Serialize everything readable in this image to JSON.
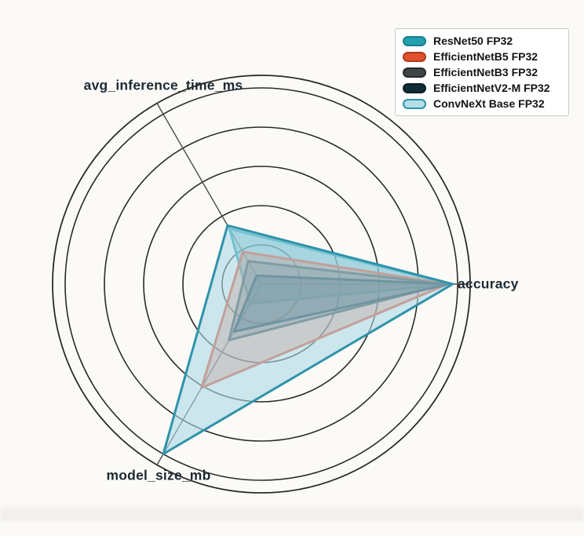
{
  "chart_data": {
    "type": "radar",
    "title": "",
    "grid": {
      "ring_levels": [
        0.2,
        0.4,
        0.6,
        0.8,
        1.0
      ],
      "has_outer_border_circle": true,
      "ring_color": "#2b2b28",
      "spoke_color": "#4a4a46"
    },
    "axes": [
      {
        "label": "accuracy",
        "angle_deg": 0
      },
      {
        "label": "avg_inference_time_ms",
        "angle_deg": 120
      },
      {
        "label": "model_size_mb",
        "angle_deg": 240
      }
    ],
    "value_scale": "normalized 0-1 of outermost gridline (estimated from pixels)",
    "series": [
      {
        "name": "ResNet50 FP32",
        "color": "#1d9fae",
        "fill": "rgba(42,160,173,0.45)",
        "pill_fill": "#259fad",
        "pill_border": "#15808d",
        "values": [
          0.965,
          0.325,
          0.115
        ]
      },
      {
        "name": "EfficientNetB5 FP32",
        "color": "#e14b2a",
        "fill": "rgba(225,75,42,0.38)",
        "pill_fill": "#e1512d",
        "pill_border": "#b03a1c",
        "values": [
          0.95,
          0.19,
          0.61
        ]
      },
      {
        "name": "EfficientNetB3 FP32",
        "color": "#3d4345",
        "fill": "rgba(80,85,85,0.42)",
        "pill_fill": "#3f4547",
        "pill_border": "#24282a",
        "values": [
          0.94,
          0.135,
          0.33
        ]
      },
      {
        "name": "EfficientNetV2-M FP32",
        "color": "#12303e",
        "fill": "rgba(25,55,70,0.45)",
        "pill_fill": "#0f2b38",
        "pill_border": "#081d27",
        "values": [
          0.96,
          0.05,
          0.28
        ]
      },
      {
        "name": "ConvNeXt Base FP32",
        "color": "#2f93aa",
        "fill": "rgba(173,216,230,0.60)",
        "pill_fill": "#b5dde8",
        "pill_border": "#2a93a8",
        "values": [
          0.975,
          0.345,
          1.0
        ]
      }
    ],
    "legend_position": "top-right"
  }
}
